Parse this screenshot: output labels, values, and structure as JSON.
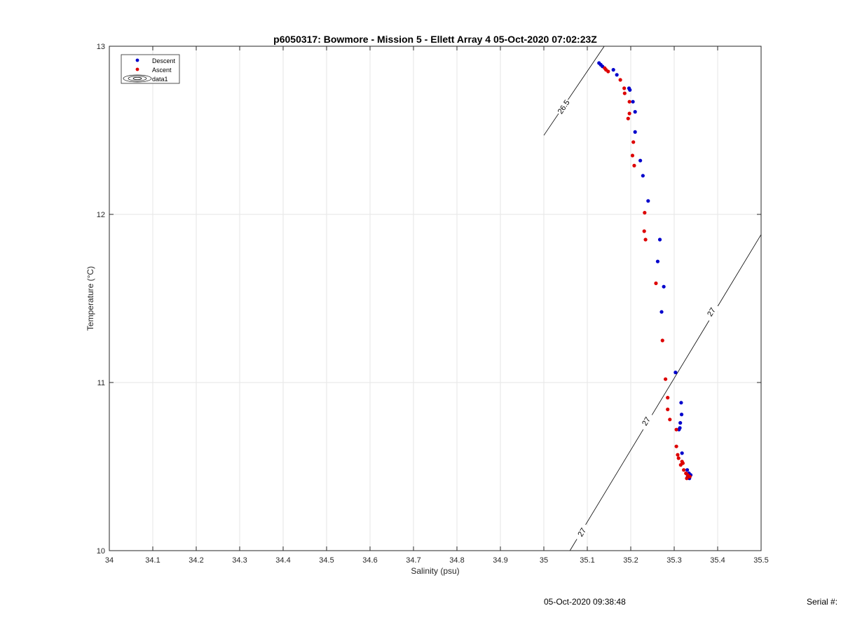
{
  "chart_data": {
    "type": "scatter",
    "title": "p6050317: Bowmore - Mission 5 - Ellett Array 4 05-Oct-2020 07:02:23Z",
    "xlabel": "Salinity (psu)",
    "ylabel": "Temperature (°C)",
    "xlim": [
      34,
      35.5
    ],
    "ylim": [
      10,
      13
    ],
    "xticks": [
      "34",
      "34.1",
      "34.2",
      "34.3",
      "34.4",
      "34.5",
      "34.6",
      "34.7",
      "34.8",
      "34.9",
      "35",
      "35.1",
      "35.2",
      "35.3",
      "35.4",
      "35.5"
    ],
    "yticks": [
      "10",
      "11",
      "12",
      "13"
    ],
    "grid": true,
    "legend_position": "top-left",
    "legend": [
      {
        "label": "Descent",
        "color": "#0000cc",
        "marker": "dot"
      },
      {
        "label": "Ascent",
        "color": "#dd0000",
        "marker": "dot"
      },
      {
        "label": "data1",
        "color": "#000000",
        "marker": "contour"
      }
    ],
    "series": [
      {
        "name": "Descent",
        "color": "#0000cc",
        "points": [
          [
            35.127,
            12.9
          ],
          [
            35.131,
            12.89
          ],
          [
            35.135,
            12.88
          ],
          [
            35.16,
            12.86
          ],
          [
            35.168,
            12.83
          ],
          [
            35.196,
            12.75
          ],
          [
            35.198,
            12.74
          ],
          [
            35.205,
            12.67
          ],
          [
            35.21,
            12.61
          ],
          [
            35.21,
            12.49
          ],
          [
            35.222,
            12.32
          ],
          [
            35.228,
            12.23
          ],
          [
            35.24,
            12.08
          ],
          [
            35.267,
            11.85
          ],
          [
            35.262,
            11.72
          ],
          [
            35.276,
            11.57
          ],
          [
            35.271,
            11.42
          ],
          [
            35.303,
            11.06
          ],
          [
            35.316,
            10.88
          ],
          [
            35.317,
            10.81
          ],
          [
            35.314,
            10.76
          ],
          [
            35.313,
            10.73
          ],
          [
            35.311,
            10.72
          ],
          [
            35.318,
            10.58
          ],
          [
            35.33,
            10.48
          ],
          [
            35.334,
            10.46
          ],
          [
            35.338,
            10.45
          ],
          [
            35.331,
            10.44
          ],
          [
            35.335,
            10.43
          ]
        ]
      },
      {
        "name": "Ascent",
        "color": "#dd0000",
        "points": [
          [
            35.14,
            12.87
          ],
          [
            35.143,
            12.86
          ],
          [
            35.148,
            12.85
          ],
          [
            35.176,
            12.8
          ],
          [
            35.185,
            12.75
          ],
          [
            35.186,
            12.72
          ],
          [
            35.197,
            12.67
          ],
          [
            35.197,
            12.6
          ],
          [
            35.194,
            12.57
          ],
          [
            35.206,
            12.43
          ],
          [
            35.204,
            12.35
          ],
          [
            35.208,
            12.29
          ],
          [
            35.232,
            12.01
          ],
          [
            35.231,
            11.9
          ],
          [
            35.234,
            11.85
          ],
          [
            35.258,
            11.59
          ],
          [
            35.273,
            11.25
          ],
          [
            35.28,
            11.02
          ],
          [
            35.285,
            10.91
          ],
          [
            35.285,
            10.84
          ],
          [
            35.29,
            10.78
          ],
          [
            35.305,
            10.72
          ],
          [
            35.305,
            10.62
          ],
          [
            35.308,
            10.57
          ],
          [
            35.31,
            10.55
          ],
          [
            35.318,
            10.53
          ],
          [
            35.315,
            10.51
          ],
          [
            35.32,
            10.52
          ],
          [
            35.322,
            10.48
          ],
          [
            35.327,
            10.46
          ],
          [
            35.331,
            10.45
          ],
          [
            35.336,
            10.44
          ],
          [
            35.329,
            10.43
          ]
        ]
      }
    ],
    "contours": [
      {
        "label": "26.5",
        "from": [
          35.0,
          12.47
        ],
        "to": [
          35.139,
          13.0
        ],
        "label_at": [
          35.045,
          12.64
        ]
      },
      {
        "label": "27",
        "from": [
          35.06,
          10.0
        ],
        "to": [
          35.5,
          11.88
        ],
        "label_at": [
          [
            35.087,
            10.11
          ],
          [
            35.235,
            10.77
          ],
          [
            35.385,
            11.42
          ]
        ]
      }
    ]
  },
  "footer": {
    "timestamp": "05-Oct-2020 09:38:48",
    "serial": "Serial #:"
  }
}
